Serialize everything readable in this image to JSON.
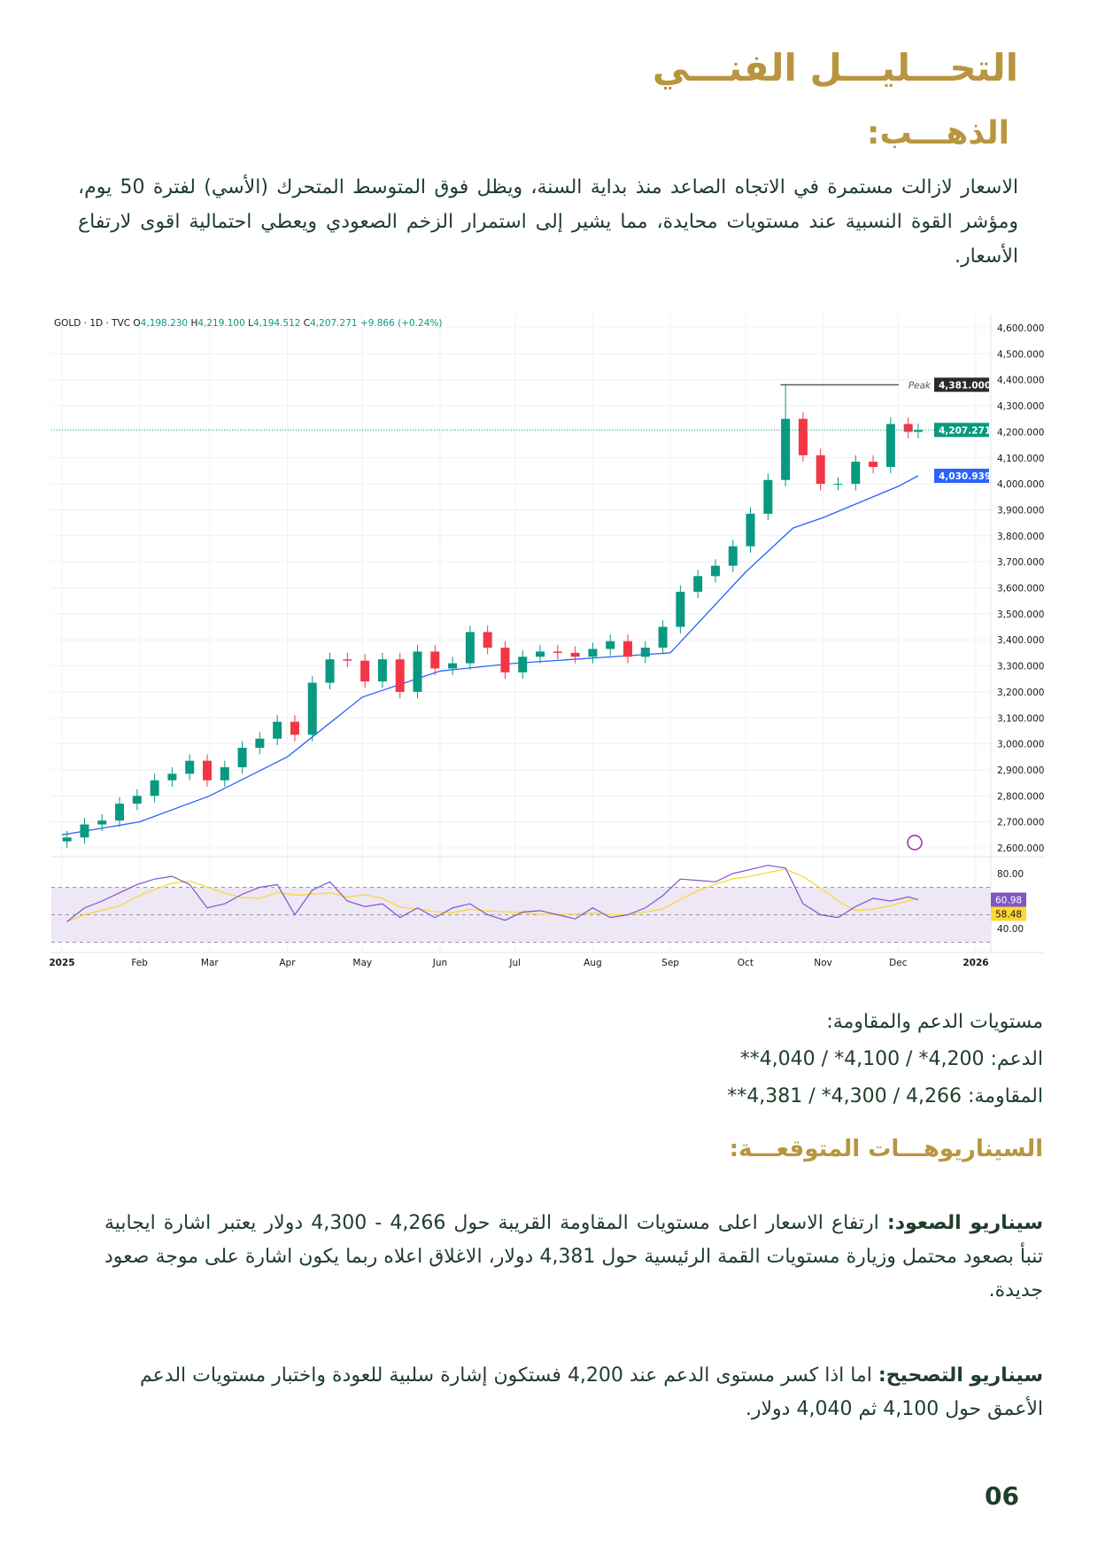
{
  "title": "التحـــليـــل الفنـــي",
  "subtitle": "الذهـــب:",
  "intro": "الاسعار لازالت مستمرة في الاتجاه الصاعد منذ بداية السنة، ويظل فوق المتوسط المتحرك (الأسي) لفترة 50 يوم، ومؤشر القوة النسبية عند مستويات محايدة، مما يشير إلى استمرار الزخم الصعودي ويعطي احتمالية اقوى لارتفاع الأسعار.",
  "levels": {
    "heading": "مستويات الدعم والمقاومة:",
    "support": "الدعم: 4,200* / 4,100* / 4,040**",
    "resistance": "المقاومة: 4,266 / 4,300* / 4,381**"
  },
  "scenarios": {
    "heading": "السيناريوهـــات المتوقعـــة:",
    "up_label": "سيناريو الصعود:",
    "up_text": " ارتفاع الاسعار اعلى مستويات المقاومة القريبة حول 4,266 - 4,300 دولار يعتبر اشارة ايجابية تنبأ بصعود محتمل وزيارة مستويات القمة الرئيسية حول 4,381 دولار، الاغلاق اعلاه ربما يكون اشارة على موجة صعود جديدة.",
    "down_label": "سيناريو التصحيح:",
    "down_text": "  اما اذا كسر مستوى الدعم عند 4,200 فستكون إشارة سلبية للعودة واختبار مستويات الدعم الأعمق حول 4,100 ثم 4,040 دولار."
  },
  "page_number": "06",
  "chart_data": {
    "type": "candlestick",
    "header": {
      "symbol": "GOLD · 1D · TVC",
      "open_label": "O",
      "open": "4,198.230",
      "high_label": "H",
      "high": "4,219.100",
      "low_label": "L",
      "low": "4,194.512",
      "close_label": "C",
      "close": "4,207.271",
      "change": "+9.866 (+0.24%)"
    },
    "ylim": [
      2550,
      4650
    ],
    "price_ticks": [
      "4,600.000",
      "4,500.000",
      "4,400.000",
      "4,300.000",
      "4,200.000",
      "4,100.000",
      "4,000.000",
      "3,900.000",
      "3,800.000",
      "3,700.000",
      "3,600.000",
      "3,500.000",
      "3,400.000",
      "3,300.000",
      "3,200.000",
      "3,100.000",
      "3,000.000",
      "2,900.000",
      "2,800.000",
      "2,700.000",
      "2,600.000"
    ],
    "x_ticks": [
      "2025",
      "Feb",
      "Mar",
      "Apr",
      "May",
      "Jun",
      "Jul",
      "Aug",
      "Sep",
      "Oct",
      "Nov",
      "Dec",
      "2026"
    ],
    "weekly_dates": [
      "2025-01-03",
      "2025-01-10",
      "2025-01-17",
      "2025-01-24",
      "2025-01-31",
      "2025-02-07",
      "2025-02-14",
      "2025-02-21",
      "2025-02-28",
      "2025-03-07",
      "2025-03-14",
      "2025-03-21",
      "2025-03-28",
      "2025-04-04",
      "2025-04-11",
      "2025-04-18",
      "2025-04-25",
      "2025-05-02",
      "2025-05-09",
      "2025-05-16",
      "2025-05-23",
      "2025-05-30",
      "2025-06-06",
      "2025-06-13",
      "2025-06-20",
      "2025-06-27",
      "2025-07-04",
      "2025-07-11",
      "2025-07-18",
      "2025-07-25",
      "2025-08-01",
      "2025-08-08",
      "2025-08-15",
      "2025-08-22",
      "2025-08-29",
      "2025-09-05",
      "2025-09-12",
      "2025-09-19",
      "2025-09-26",
      "2025-10-03",
      "2025-10-10",
      "2025-10-17",
      "2025-10-24",
      "2025-10-31",
      "2025-11-07",
      "2025-11-14",
      "2025-11-21",
      "2025-11-28",
      "2025-12-05",
      "2025-12-09"
    ],
    "weekly_close": [
      2640,
      2690,
      2705,
      2770,
      2800,
      2860,
      2885,
      2935,
      2860,
      2910,
      2985,
      3020,
      3085,
      3035,
      3235,
      3325,
      3320,
      3240,
      3325,
      3200,
      3355,
      3290,
      3310,
      3430,
      3370,
      3275,
      3335,
      3355,
      3350,
      3335,
      3365,
      3395,
      3335,
      3370,
      3450,
      3585,
      3645,
      3685,
      3760,
      3885,
      4015,
      4250,
      4110,
      4000,
      4000,
      4085,
      4065,
      4230,
      4200,
      4207
    ],
    "ema50": {
      "dates": [
        "2025-01-01",
        "2025-02-01",
        "2025-03-01",
        "2025-04-01",
        "2025-05-01",
        "2025-06-01",
        "2025-07-01",
        "2025-08-01",
        "2025-09-01",
        "2025-10-01",
        "2025-10-20",
        "2025-11-01",
        "2025-12-01",
        "2025-12-09"
      ],
      "values": [
        2650,
        2700,
        2800,
        2950,
        3180,
        3280,
        3310,
        3330,
        3350,
        3660,
        3830,
        3870,
        3990,
        4031
      ]
    },
    "peak": {
      "label": "Peak",
      "value": "4,381.000",
      "price": 4381
    },
    "last_price": {
      "value": "4,207.271",
      "price": 4207.271
    },
    "ema_last": {
      "value": "4,030.939",
      "price": 4030.939
    },
    "rsi": {
      "ticks": [
        "80.00",
        "40.00"
      ],
      "values": [
        45,
        55,
        60,
        66,
        72,
        76,
        78,
        72,
        55,
        58,
        65,
        70,
        72,
        50,
        68,
        74,
        60,
        56,
        58,
        48,
        55,
        48,
        55,
        58,
        50,
        46,
        52,
        53,
        50,
        47,
        55,
        48,
        50,
        55,
        64,
        76,
        75,
        74,
        80,
        83,
        86,
        84,
        58,
        50,
        48,
        56,
        62,
        60,
        63,
        61
      ],
      "last": "60.98",
      "ma_last": "58.48"
    },
    "colors": {
      "up": "#089981",
      "down": "#f23645",
      "ema": "#2962ff",
      "rsi": "#7e57c2",
      "rsi_ma": "#fdd835",
      "band": "#ede7f6"
    }
  }
}
